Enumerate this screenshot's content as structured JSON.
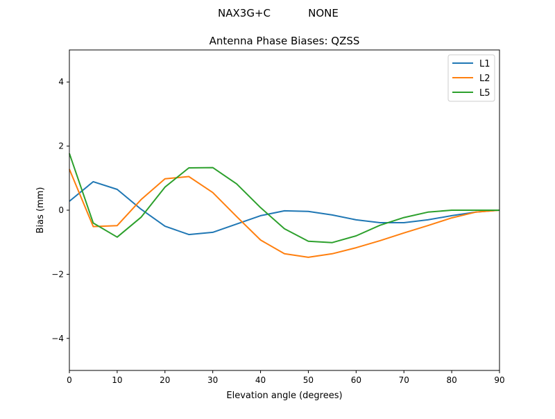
{
  "chart_data": {
    "type": "line",
    "suptitle_left": "NAX3G+C",
    "suptitle_right": "NONE",
    "title": "Antenna Phase Biases: QZSS",
    "xlabel": "Elevation angle (degrees)",
    "ylabel": "Bias (mm)",
    "xlim": [
      0,
      90
    ],
    "ylim": [
      -5,
      5
    ],
    "xticks": [
      0,
      10,
      20,
      30,
      40,
      50,
      60,
      70,
      80,
      90
    ],
    "yticks": [
      -4,
      -2,
      0,
      2,
      4
    ],
    "ytick_labels": [
      "−4",
      "−2",
      "0",
      "2",
      "4"
    ],
    "grid": false,
    "legend_position": "top-right",
    "x": [
      0,
      5,
      10,
      15,
      20,
      25,
      30,
      35,
      40,
      45,
      50,
      55,
      60,
      65,
      70,
      75,
      80,
      85,
      90
    ],
    "series": [
      {
        "name": "L1",
        "color": "#1f77b4",
        "values": [
          0.28,
          0.89,
          0.65,
          0.03,
          -0.5,
          -0.76,
          -0.69,
          -0.43,
          -0.17,
          -0.02,
          -0.04,
          -0.15,
          -0.3,
          -0.39,
          -0.39,
          -0.3,
          -0.17,
          -0.06,
          0
        ]
      },
      {
        "name": "L2",
        "color": "#ff7f0e",
        "values": [
          1.28,
          -0.51,
          -0.48,
          0.33,
          0.98,
          1.05,
          0.55,
          -0.2,
          -0.93,
          -1.36,
          -1.47,
          -1.36,
          -1.17,
          -0.95,
          -0.71,
          -0.48,
          -0.24,
          -0.06,
          0
        ]
      },
      {
        "name": "L5",
        "color": "#2ca02c",
        "values": [
          1.77,
          -0.4,
          -0.84,
          -0.22,
          0.72,
          1.32,
          1.33,
          0.82,
          0.08,
          -0.58,
          -0.97,
          -1.01,
          -0.8,
          -0.47,
          -0.23,
          -0.06,
          0,
          0,
          0
        ]
      }
    ]
  }
}
